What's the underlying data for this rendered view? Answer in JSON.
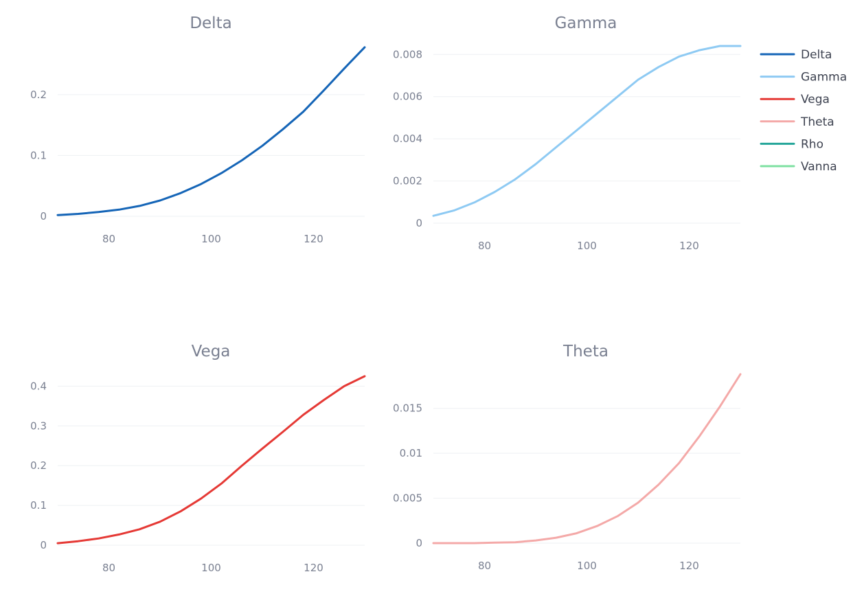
{
  "chart_data": [
    {
      "type": "line",
      "title": "Delta",
      "xlabel": "",
      "ylabel": "",
      "xlim": [
        70,
        130
      ],
      "ylim": [
        0,
        0.28
      ],
      "xticks": [
        80,
        100,
        120
      ],
      "xtick_labels": [
        "80",
        "100",
        "120"
      ],
      "yticks": [
        0,
        0.1,
        0.2
      ],
      "ytick_labels": [
        "0",
        "0.1",
        "0.2"
      ],
      "grid": true,
      "series": [
        {
          "name": "Delta",
          "color": "#1565b7",
          "x": [
            70,
            74,
            78,
            82,
            86,
            90,
            94,
            98,
            102,
            106,
            110,
            114,
            118,
            122,
            126,
            130
          ],
          "y": [
            0.002,
            0.004,
            0.007,
            0.011,
            0.017,
            0.026,
            0.038,
            0.053,
            0.071,
            0.092,
            0.116,
            0.143,
            0.172,
            0.207,
            0.243,
            0.278
          ]
        }
      ]
    },
    {
      "type": "line",
      "title": "Gamma",
      "xlabel": "",
      "ylabel": "",
      "xlim": [
        70,
        130
      ],
      "ylim": [
        0,
        0.0084
      ],
      "xticks": [
        80,
        100,
        120
      ],
      "xtick_labels": [
        "80",
        "100",
        "120"
      ],
      "yticks": [
        0,
        0.002,
        0.004,
        0.006,
        0.008
      ],
      "ytick_labels": [
        "0",
        "0.002",
        "0.004",
        "0.006",
        "0.008"
      ],
      "grid": true,
      "series": [
        {
          "name": "Gamma",
          "color": "#8ecaf3",
          "x": [
            70,
            74,
            78,
            82,
            86,
            90,
            94,
            98,
            102,
            106,
            110,
            114,
            118,
            122,
            126,
            130
          ],
          "y": [
            0.00035,
            0.0006,
            0.00098,
            0.00148,
            0.00208,
            0.0028,
            0.0036,
            0.0044,
            0.0052,
            0.006,
            0.0068,
            0.0074,
            0.0079,
            0.0082,
            0.0084,
            0.0084
          ]
        }
      ]
    },
    {
      "type": "line",
      "title": "Vega",
      "xlabel": "",
      "ylabel": "",
      "xlim": [
        70,
        130
      ],
      "ylim": [
        0,
        0.43
      ],
      "xticks": [
        80,
        100,
        120
      ],
      "xtick_labels": [
        "80",
        "100",
        "120"
      ],
      "yticks": [
        0,
        0.1,
        0.2,
        0.3,
        0.4
      ],
      "ytick_labels": [
        "0",
        "0.1",
        "0.2",
        "0.3",
        "0.4"
      ],
      "grid": true,
      "series": [
        {
          "name": "Vega",
          "color": "#e53935",
          "x": [
            70,
            74,
            78,
            82,
            86,
            90,
            94,
            98,
            102,
            106,
            110,
            114,
            118,
            122,
            126,
            130
          ],
          "y": [
            0.005,
            0.01,
            0.017,
            0.027,
            0.04,
            0.059,
            0.085,
            0.117,
            0.155,
            0.2,
            0.243,
            0.285,
            0.328,
            0.365,
            0.4,
            0.425
          ]
        }
      ]
    },
    {
      "type": "line",
      "title": "Theta",
      "xlabel": "",
      "ylabel": "",
      "xlim": [
        70,
        130
      ],
      "ylim": [
        0,
        0.0188
      ],
      "xticks": [
        80,
        100,
        120
      ],
      "xtick_labels": [
        "80",
        "100",
        "120"
      ],
      "yticks": [
        0,
        0.005,
        0.01,
        0.015
      ],
      "ytick_labels": [
        "0",
        "0.005",
        "0.01",
        "0.015"
      ],
      "grid": true,
      "series": [
        {
          "name": "Theta",
          "color": "#f4a9a8",
          "x": [
            70,
            74,
            78,
            82,
            86,
            90,
            94,
            98,
            102,
            106,
            110,
            114,
            118,
            122,
            126,
            130
          ],
          "y": [
            0.0,
            0.0,
            0.0,
            5e-05,
            0.0001,
            0.0003,
            0.0006,
            0.0011,
            0.0019,
            0.003,
            0.0045,
            0.0065,
            0.0089,
            0.0119,
            0.0152,
            0.0188
          ]
        }
      ]
    }
  ],
  "legend": {
    "position": "top-right",
    "items": [
      {
        "label": "Delta",
        "color": "#1565b7"
      },
      {
        "label": "Gamma",
        "color": "#8ecaf3"
      },
      {
        "label": "Vega",
        "color": "#e53935"
      },
      {
        "label": "Theta",
        "color": "#f4a9a8"
      },
      {
        "label": "Rho",
        "color": "#26a69a"
      },
      {
        "label": "Vanna",
        "color": "#7ee0a1"
      }
    ]
  }
}
